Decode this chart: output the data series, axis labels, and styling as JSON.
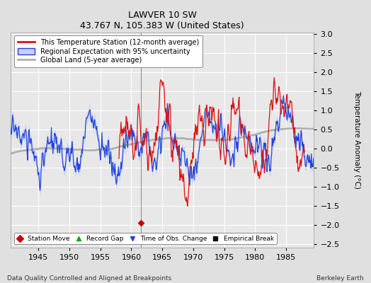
{
  "title": "LAWVER 10 SW",
  "subtitle": "43.767 N, 105.383 W (United States)",
  "xlabel_bottom": "Data Quality Controlled and Aligned at Breakpoints",
  "xlabel_right": "Berkeley Earth",
  "ylabel": "Temperature Anomaly (°C)",
  "xlim": [
    1940.5,
    1989.5
  ],
  "ylim": [
    -2.6,
    3.05
  ],
  "yticks": [
    -2.5,
    -2,
    -1.5,
    -1,
    -0.5,
    0,
    0.5,
    1,
    1.5,
    2,
    2.5,
    3
  ],
  "xticks": [
    1945,
    1950,
    1955,
    1960,
    1965,
    1970,
    1975,
    1980,
    1985
  ],
  "bg_color": "#e0e0e0",
  "plot_bg_color": "#e8e8e8",
  "grid_color": "#ffffff",
  "station_move_year": 1961.5,
  "station_move_value": -1.95,
  "legend_labels": [
    "This Temperature Station (12-month average)",
    "Regional Expectation with 95% uncertainty",
    "Global Land (5-year average)"
  ],
  "seed": 17
}
